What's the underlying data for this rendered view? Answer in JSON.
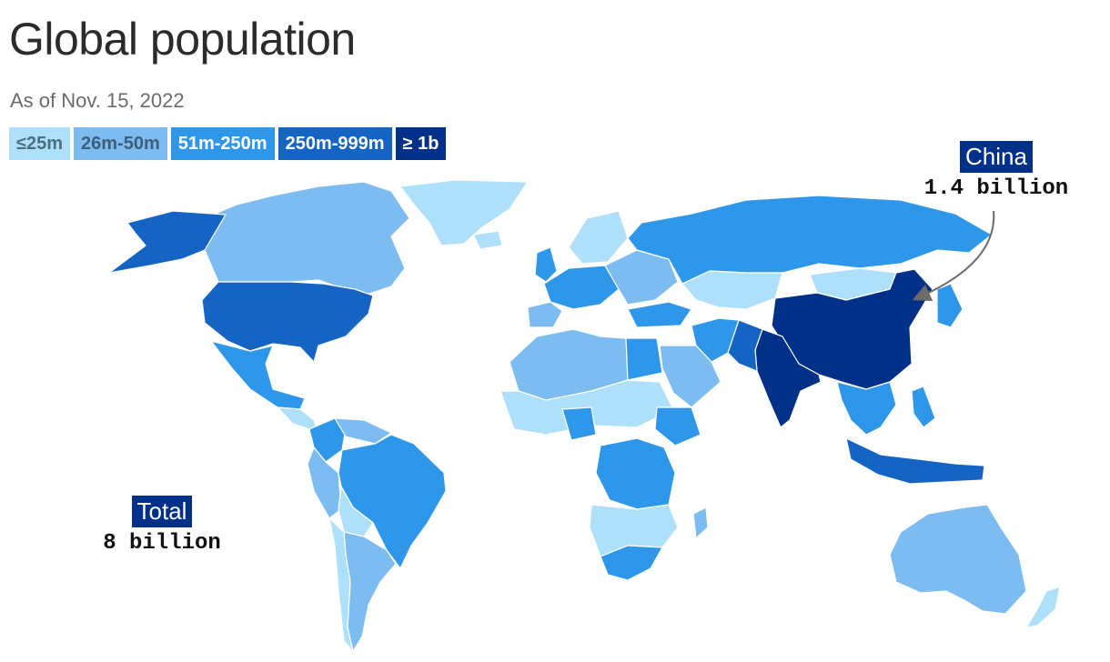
{
  "header": {
    "title": "Global population",
    "subtitle": "As of Nov. 15, 2022"
  },
  "legend": [
    {
      "label": "≤25m",
      "color": "#aee0fb",
      "text_color": "#4a6f86"
    },
    {
      "label": "26m-50m",
      "color": "#7cbcf0",
      "text_color": "#3d5f7c"
    },
    {
      "label": "51m-250m",
      "color": "#2f97ea",
      "text_color": "#ffffff"
    },
    {
      "label": "250m-999m",
      "color": "#1563c2",
      "text_color": "#ffffff"
    },
    {
      "label": "≥ 1b",
      "color": "#003087",
      "text_color": "#ffffff"
    }
  ],
  "callouts": {
    "china": {
      "label": "China",
      "value": "1.4 billion"
    },
    "total": {
      "label": "Total",
      "value": "8 billion"
    }
  },
  "colors": {
    "ocean": "#ffffff",
    "border": "#ffffff",
    "arrow": "#6b6b6b"
  },
  "regions": [
    {
      "name": "Greenland",
      "tier": 0
    },
    {
      "name": "Canada",
      "tier": 1
    },
    {
      "name": "Alaska",
      "tier": 3
    },
    {
      "name": "United States",
      "tier": 3
    },
    {
      "name": "Mexico",
      "tier": 2
    },
    {
      "name": "Central America",
      "tier": 0
    },
    {
      "name": "Colombia",
      "tier": 2
    },
    {
      "name": "Venezuela",
      "tier": 1
    },
    {
      "name": "Peru",
      "tier": 1
    },
    {
      "name": "Brazil",
      "tier": 2
    },
    {
      "name": "Bolivia",
      "tier": 0
    },
    {
      "name": "Argentina",
      "tier": 1
    },
    {
      "name": "Chile",
      "tier": 0
    },
    {
      "name": "Iceland",
      "tier": 0
    },
    {
      "name": "United Kingdom",
      "tier": 2
    },
    {
      "name": "Scandinavia",
      "tier": 0
    },
    {
      "name": "Western Europe",
      "tier": 2
    },
    {
      "name": "Iberia",
      "tier": 1
    },
    {
      "name": "Eastern Europe",
      "tier": 1
    },
    {
      "name": "Russia",
      "tier": 2
    },
    {
      "name": "Turkey",
      "tier": 2
    },
    {
      "name": "Kazakhstan",
      "tier": 0
    },
    {
      "name": "Mongolia",
      "tier": 0
    },
    {
      "name": "China",
      "tier": 4
    },
    {
      "name": "India",
      "tier": 4
    },
    {
      "name": "Pakistan",
      "tier": 3
    },
    {
      "name": "Iran",
      "tier": 2
    },
    {
      "name": "Saudi Arabia",
      "tier": 1
    },
    {
      "name": "Japan",
      "tier": 2
    },
    {
      "name": "Southeast Asia",
      "tier": 2
    },
    {
      "name": "Indonesia",
      "tier": 3
    },
    {
      "name": "Philippines",
      "tier": 2
    },
    {
      "name": "Australia",
      "tier": 1
    },
    {
      "name": "New Zealand",
      "tier": 0
    },
    {
      "name": "North Africa",
      "tier": 1
    },
    {
      "name": "Sahel",
      "tier": 0
    },
    {
      "name": "Egypt",
      "tier": 2
    },
    {
      "name": "Nigeria",
      "tier": 2
    },
    {
      "name": "Ethiopia",
      "tier": 2
    },
    {
      "name": "DR Congo",
      "tier": 2
    },
    {
      "name": "Southern Africa",
      "tier": 0
    },
    {
      "name": "South Africa",
      "tier": 2
    },
    {
      "name": "Madagascar",
      "tier": 1
    }
  ]
}
